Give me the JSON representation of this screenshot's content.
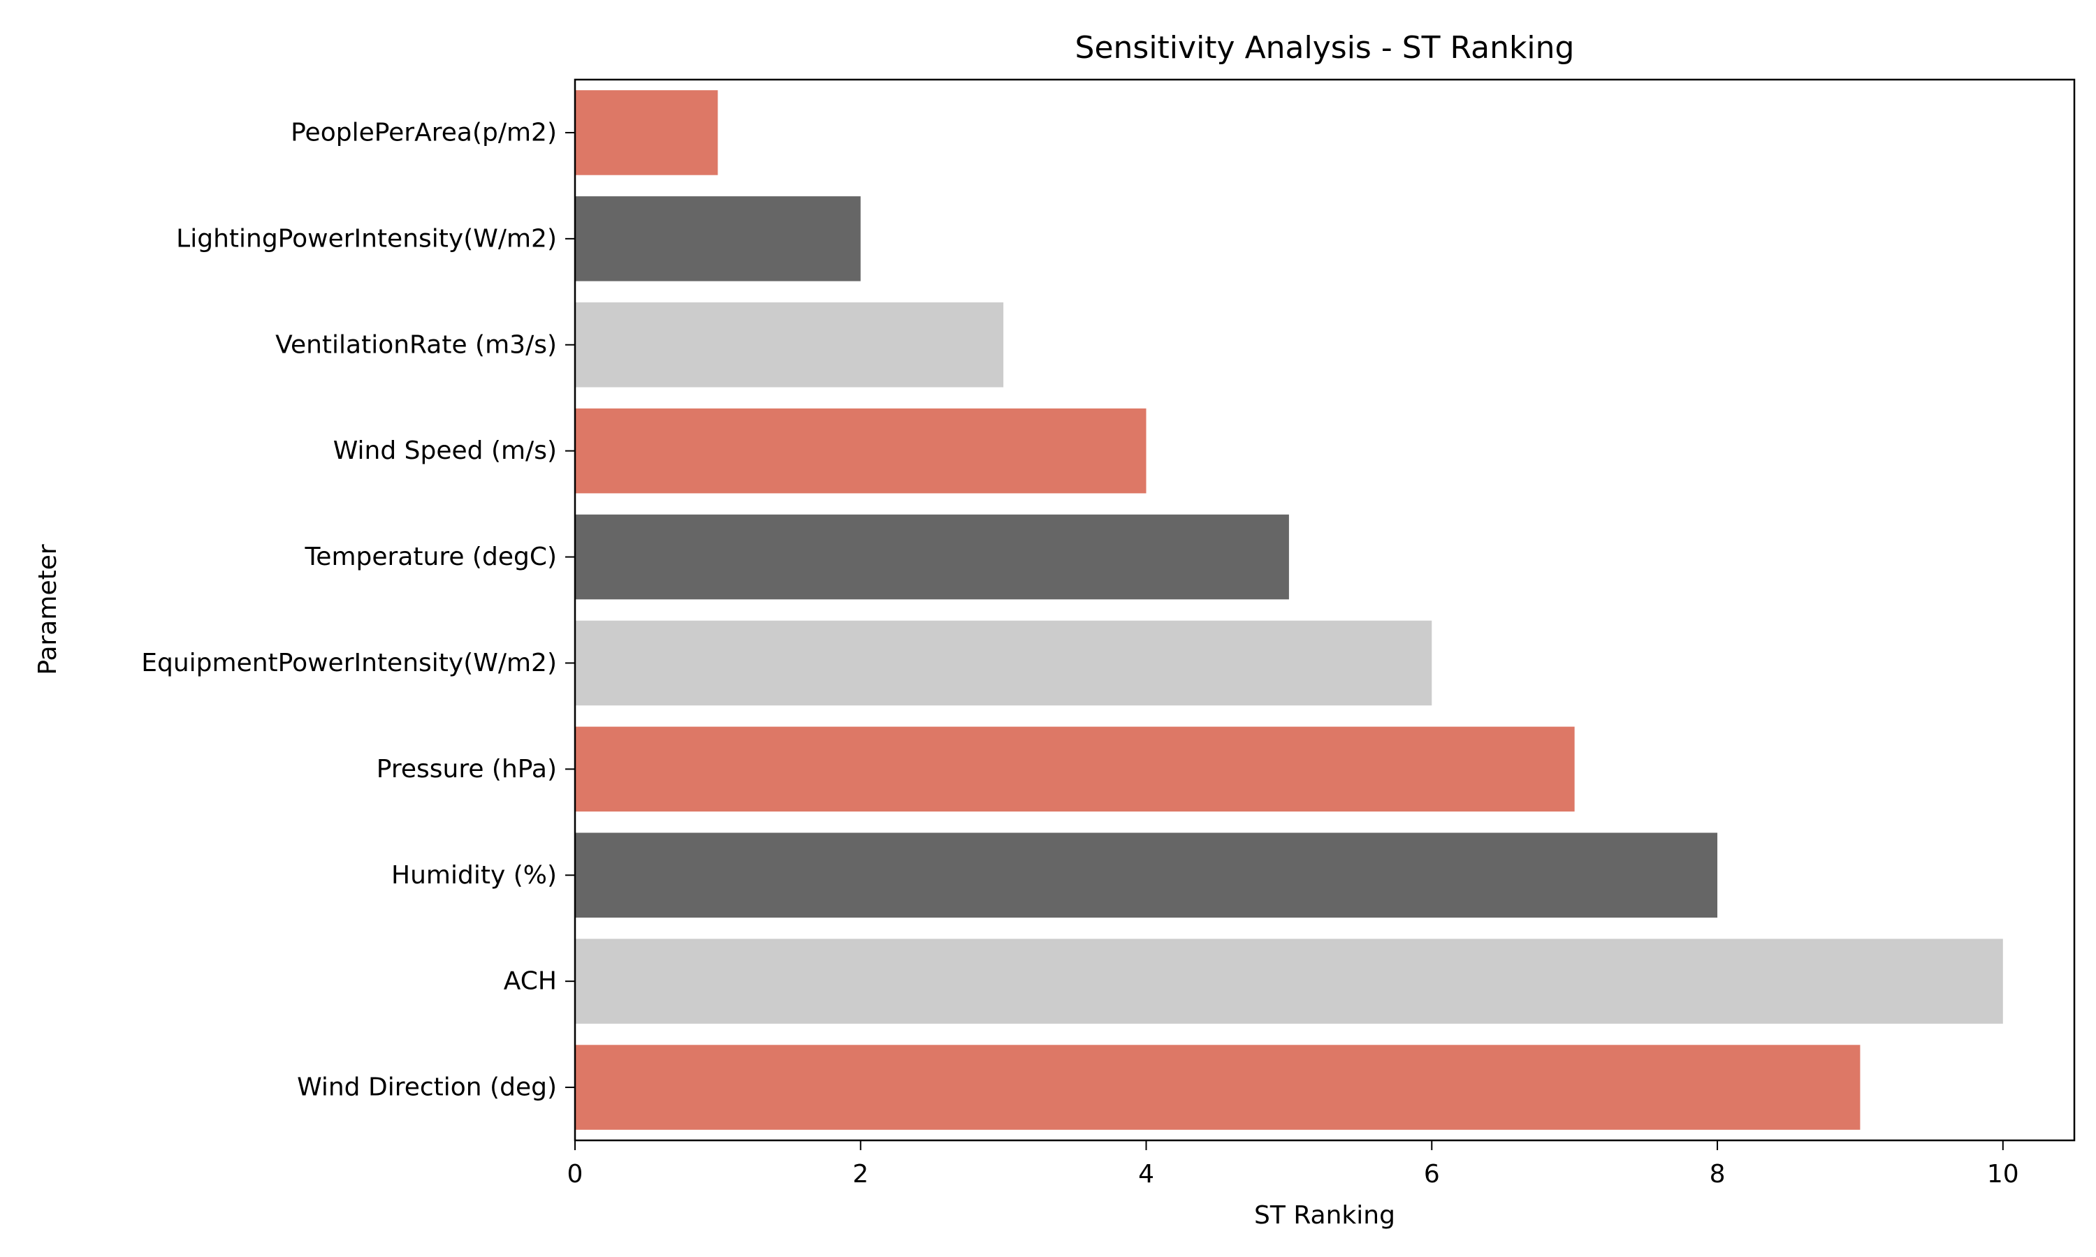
{
  "chart_data": {
    "type": "bar",
    "orientation": "horizontal",
    "title": "Sensitivity Analysis - ST Ranking",
    "xlabel": "ST Ranking",
    "ylabel": "Parameter",
    "categories": [
      "PeoplePerArea(p/m2)",
      "LightingPowerIntensity(W/m2)",
      "VentilationRate (m3/s)",
      "Wind Speed (m/s)",
      "Temperature (degC)",
      "EquipmentPowerIntensity(W/m2)",
      "Pressure (hPa)",
      "Humidity (%)",
      "ACH",
      "Wind Direction (deg)"
    ],
    "values": [
      1,
      2,
      3,
      4,
      5,
      6,
      7,
      8,
      10,
      9
    ],
    "bar_colors": [
      "#dd7866",
      "#666666",
      "#cccccc",
      "#dd7866",
      "#666666",
      "#cccccc",
      "#dd7866",
      "#666666",
      "#cccccc",
      "#dd7866"
    ],
    "xlim": [
      0,
      10.5
    ],
    "xticks": [
      0,
      2,
      4,
      6,
      8,
      10
    ],
    "xtick_labels": [
      "0",
      "2",
      "4",
      "6",
      "8",
      "10"
    ],
    "grid": false,
    "legend": "none"
  }
}
